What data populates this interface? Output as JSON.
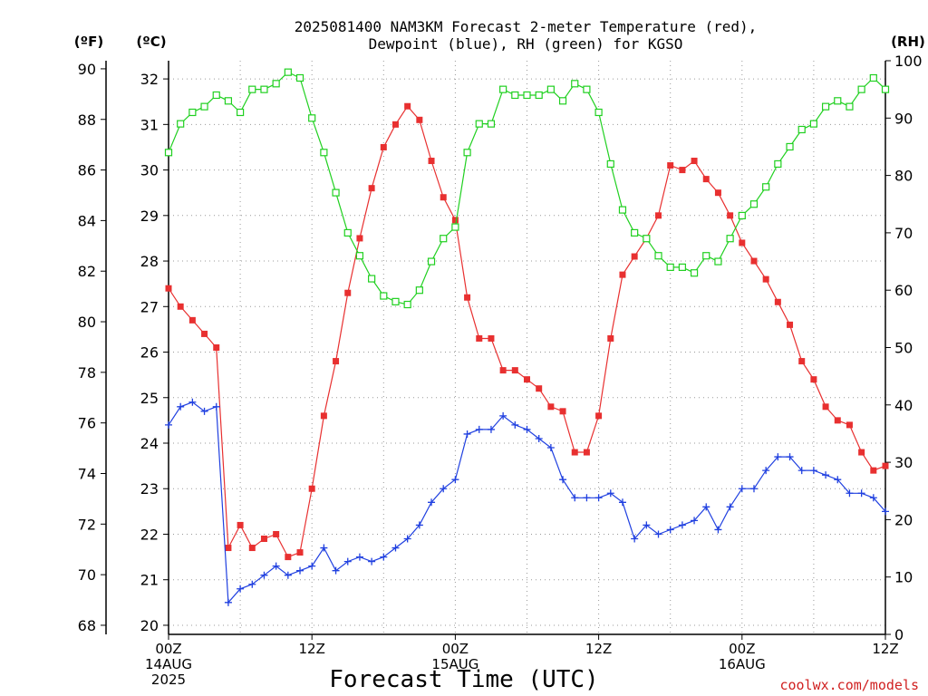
{
  "chart_data": {
    "type": "line",
    "title": {
      "line1": "2025081400 NAM3KM Forecast 2-meter Temperature (red),",
      "line2": "Dewpoint (blue), RH (green) for KGSO"
    },
    "xlabel": "Forecast Time (UTC)",
    "credit": "coolwx.com/models",
    "units": {
      "f": "(ºF)",
      "c": "(ºC)",
      "rh": "(RH)"
    },
    "x_range_hours": [
      0,
      60
    ],
    "ylim_c": [
      19.8,
      32.4
    ],
    "ylim_f": [
      67.64,
      90.32
    ],
    "ylim_rh": [
      0,
      100
    ],
    "yticks_f": [
      68,
      70,
      72,
      74,
      76,
      78,
      80,
      82,
      84,
      86,
      88,
      90
    ],
    "yticks_c": [
      20,
      21,
      22,
      23,
      24,
      25,
      26,
      27,
      28,
      29,
      30,
      31,
      32
    ],
    "yticks_rh": [
      0,
      10,
      20,
      30,
      40,
      50,
      60,
      70,
      80,
      90,
      100
    ],
    "xticks": [
      {
        "hour": 0,
        "lines": [
          "00Z",
          "14AUG",
          "2025"
        ]
      },
      {
        "hour": 12,
        "lines": [
          "12Z"
        ]
      },
      {
        "hour": 24,
        "lines": [
          "00Z",
          "15AUG"
        ]
      },
      {
        "hour": 36,
        "lines": [
          "12Z"
        ]
      },
      {
        "hour": 48,
        "lines": [
          "00Z",
          "16AUG"
        ]
      },
      {
        "hour": 60,
        "lines": [
          "12Z"
        ]
      }
    ],
    "grid": true,
    "colors": {
      "temperature": "#e83030",
      "dewpoint": "#2040e0",
      "rh": "#20d020",
      "grid": "#999999"
    },
    "series": [
      {
        "name": "Temperature",
        "units": "C",
        "x": [
          0,
          1,
          2,
          3,
          4,
          5,
          6,
          7,
          8,
          9,
          10,
          11,
          12,
          13,
          14,
          15,
          16,
          17,
          18,
          19,
          20,
          21,
          22,
          23,
          24,
          25,
          26,
          27,
          28,
          29,
          30,
          31,
          32,
          33,
          34,
          35,
          36,
          37,
          38,
          39,
          40,
          41,
          42,
          43,
          44,
          45,
          46,
          47,
          48,
          49,
          50,
          51,
          52,
          53,
          54,
          55,
          56,
          57,
          58,
          59,
          60
        ],
        "values": [
          27.4,
          27.0,
          26.7,
          26.4,
          26.1,
          21.7,
          22.2,
          21.7,
          21.9,
          22.0,
          21.5,
          21.6,
          23.0,
          24.6,
          25.8,
          27.3,
          28.5,
          29.6,
          30.5,
          31.0,
          31.4,
          31.1,
          30.2,
          29.4,
          28.9,
          27.2,
          26.3,
          26.3,
          25.6,
          25.6,
          25.4,
          25.2,
          24.8,
          24.7,
          23.8,
          23.8,
          24.6,
          26.3,
          27.7,
          28.1,
          28.5,
          29.0,
          30.1,
          30.0,
          30.2,
          29.8,
          29.5,
          29.0,
          28.4,
          28.0,
          27.6,
          27.1,
          26.6,
          25.8,
          25.4,
          24.8,
          24.5,
          24.4,
          23.8,
          23.4,
          23.5
        ]
      },
      {
        "name": "Dewpoint",
        "units": "C",
        "x": [
          0,
          1,
          2,
          3,
          4,
          5,
          6,
          7,
          8,
          9,
          10,
          11,
          12,
          13,
          14,
          15,
          16,
          17,
          18,
          19,
          20,
          21,
          22,
          23,
          24,
          25,
          26,
          27,
          28,
          29,
          30,
          31,
          32,
          33,
          34,
          35,
          36,
          37,
          38,
          39,
          40,
          41,
          42,
          43,
          44,
          45,
          46,
          47,
          48,
          49,
          50,
          51,
          52,
          53,
          54,
          55,
          56,
          57,
          58,
          59,
          60
        ],
        "values": [
          24.4,
          24.8,
          24.9,
          24.7,
          24.8,
          20.5,
          20.8,
          20.9,
          21.1,
          21.3,
          21.1,
          21.2,
          21.3,
          21.7,
          21.2,
          21.4,
          21.5,
          21.4,
          21.5,
          21.7,
          21.9,
          22.2,
          22.7,
          23.0,
          23.2,
          24.2,
          24.3,
          24.3,
          24.6,
          24.4,
          24.3,
          24.1,
          23.9,
          23.2,
          22.8,
          22.8,
          22.8,
          22.9,
          22.7,
          21.9,
          22.2,
          22.0,
          22.1,
          22.2,
          22.3,
          22.6,
          22.1,
          22.6,
          23.0,
          23.0,
          23.4,
          23.7,
          23.7,
          23.4,
          23.4,
          23.3,
          23.2,
          22.9,
          22.9,
          22.8,
          22.5
        ]
      },
      {
        "name": "RH",
        "units": "%",
        "x": [
          0,
          1,
          2,
          3,
          4,
          5,
          6,
          7,
          8,
          9,
          10,
          11,
          12,
          13,
          14,
          15,
          16,
          17,
          18,
          19,
          20,
          21,
          22,
          23,
          24,
          25,
          26,
          27,
          28,
          29,
          30,
          31,
          32,
          33,
          34,
          35,
          36,
          37,
          38,
          39,
          40,
          41,
          42,
          43,
          44,
          45,
          46,
          47,
          48,
          49,
          50,
          51,
          52,
          53,
          54,
          55,
          56,
          57,
          58,
          59,
          60
        ],
        "values": [
          84,
          89,
          91,
          92,
          94,
          93,
          91,
          95,
          95,
          96,
          98,
          97,
          90,
          84,
          77,
          70,
          66,
          62,
          59,
          58,
          57.5,
          60,
          65,
          69,
          71,
          84,
          89,
          89,
          95,
          94,
          94,
          94,
          95,
          93,
          96,
          95,
          91,
          82,
          74,
          70,
          69,
          66,
          64,
          64,
          63,
          66,
          65,
          69,
          73,
          75,
          78,
          82,
          85,
          88,
          89,
          92,
          93,
          92,
          95,
          97,
          95
        ]
      }
    ]
  }
}
